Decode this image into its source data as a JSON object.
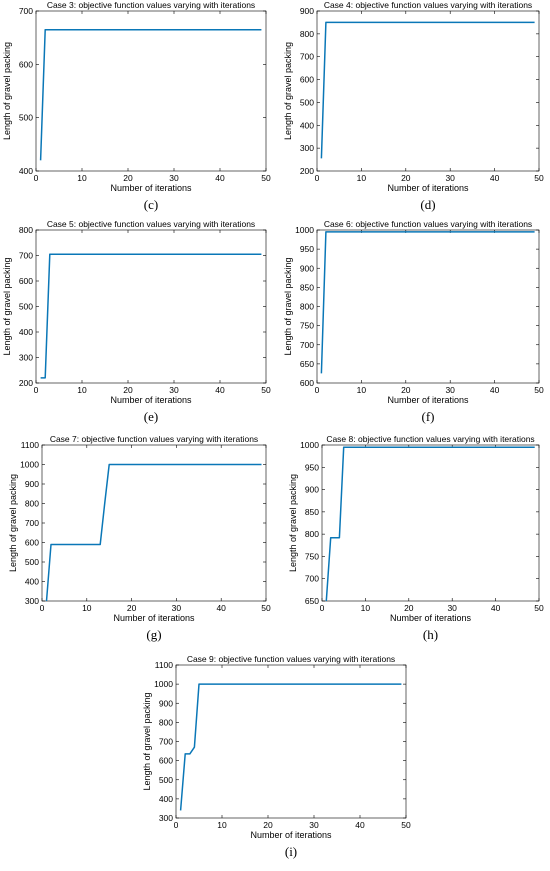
{
  "chart_data": [
    {
      "type": "line",
      "title": "Case 3: objective function values varying with iterations",
      "xlabel": "Number of iterations",
      "ylabel": "Length of gravel packing",
      "caption": "(c)",
      "xlim": [
        0,
        50
      ],
      "ylim": [
        400,
        700
      ],
      "xticks": [
        0,
        10,
        20,
        30,
        40,
        50
      ],
      "yticks": [
        400,
        500,
        600,
        700
      ],
      "color": "#0a77b7",
      "series": [
        {
          "x": [
            1,
            2,
            49
          ],
          "y": [
            420,
            665,
            665
          ]
        }
      ]
    },
    {
      "type": "line",
      "title": "Case 4: objective function values varying with iterations",
      "xlabel": "Number of iterations",
      "ylabel": "Length of gravel packing",
      "caption": "(d)",
      "xlim": [
        0,
        50
      ],
      "ylim": [
        200,
        900
      ],
      "xticks": [
        0,
        10,
        20,
        30,
        40,
        50
      ],
      "yticks": [
        200,
        300,
        400,
        500,
        600,
        700,
        800,
        900
      ],
      "color": "#0a77b7",
      "series": [
        {
          "x": [
            1,
            2,
            49
          ],
          "y": [
            255,
            850,
            850
          ]
        }
      ]
    },
    {
      "type": "line",
      "title": "Case 5: objective function values varying with iterations",
      "xlabel": "Number of iterations",
      "ylabel": "Length of gravel packing",
      "caption": "(e)",
      "xlim": [
        0,
        50
      ],
      "ylim": [
        200,
        800
      ],
      "xticks": [
        0,
        10,
        20,
        30,
        40,
        50
      ],
      "yticks": [
        200,
        300,
        400,
        500,
        600,
        700,
        800
      ],
      "color": "#0a77b7",
      "series": [
        {
          "x": [
            1,
            2,
            3,
            49
          ],
          "y": [
            220,
            220,
            705,
            705
          ]
        }
      ]
    },
    {
      "type": "line",
      "title": "Case 6: objective function values varying with iterations",
      "xlabel": "Number of iterations",
      "ylabel": "Length of gravel packing",
      "caption": "(f)",
      "xlim": [
        0,
        50
      ],
      "ylim": [
        600,
        1000
      ],
      "xticks": [
        0,
        10,
        20,
        30,
        40,
        50
      ],
      "yticks": [
        600,
        650,
        700,
        750,
        800,
        850,
        900,
        950,
        1000
      ],
      "color": "#0a77b7",
      "series": [
        {
          "x": [
            1,
            2,
            49
          ],
          "y": [
            625,
            995,
            995
          ]
        }
      ]
    },
    {
      "type": "line",
      "title": "Case 7: objective function values varying with iterations",
      "xlabel": "Number of iterations",
      "ylabel": "Length of gravel packing",
      "caption": "(g)",
      "xlim": [
        0,
        50
      ],
      "ylim": [
        300,
        1100
      ],
      "xticks": [
        0,
        10,
        20,
        30,
        40,
        50
      ],
      "yticks": [
        300,
        400,
        500,
        600,
        700,
        800,
        900,
        1000,
        1100
      ],
      "color": "#0a77b7",
      "series": [
        {
          "x": [
            1,
            2,
            13,
            14,
            15,
            49
          ],
          "y": [
            300,
            590,
            590,
            800,
            1000,
            1000
          ]
        }
      ]
    },
    {
      "type": "line",
      "title": "Case 8: objective function values varying with iterations",
      "xlabel": "Number of iterations",
      "ylabel": "Length of gravel packing",
      "caption": "(h)",
      "xlim": [
        0,
        50
      ],
      "ylim": [
        650,
        1000
      ],
      "xticks": [
        0,
        10,
        20,
        30,
        40,
        50
      ],
      "yticks": [
        650,
        700,
        750,
        800,
        850,
        900,
        950,
        1000
      ],
      "color": "#0a77b7",
      "series": [
        {
          "x": [
            1,
            2,
            4,
            5,
            49
          ],
          "y": [
            650,
            792,
            792,
            995,
            995
          ]
        }
      ]
    },
    {
      "type": "line",
      "title": "Case 9: objective function values varying with iterations",
      "xlabel": "Number of iterations",
      "ylabel": "Length of gravel packing",
      "caption": "(i)",
      "xlim": [
        0,
        50
      ],
      "ylim": [
        300,
        1100
      ],
      "xticks": [
        0,
        10,
        20,
        30,
        40,
        50
      ],
      "yticks": [
        300,
        400,
        500,
        600,
        700,
        800,
        900,
        1000,
        1100
      ],
      "color": "#0a77b7",
      "series": [
        {
          "x": [
            1,
            2,
            3,
            4,
            5,
            49
          ],
          "y": [
            340,
            635,
            635,
            670,
            1000,
            1000
          ]
        }
      ]
    }
  ]
}
